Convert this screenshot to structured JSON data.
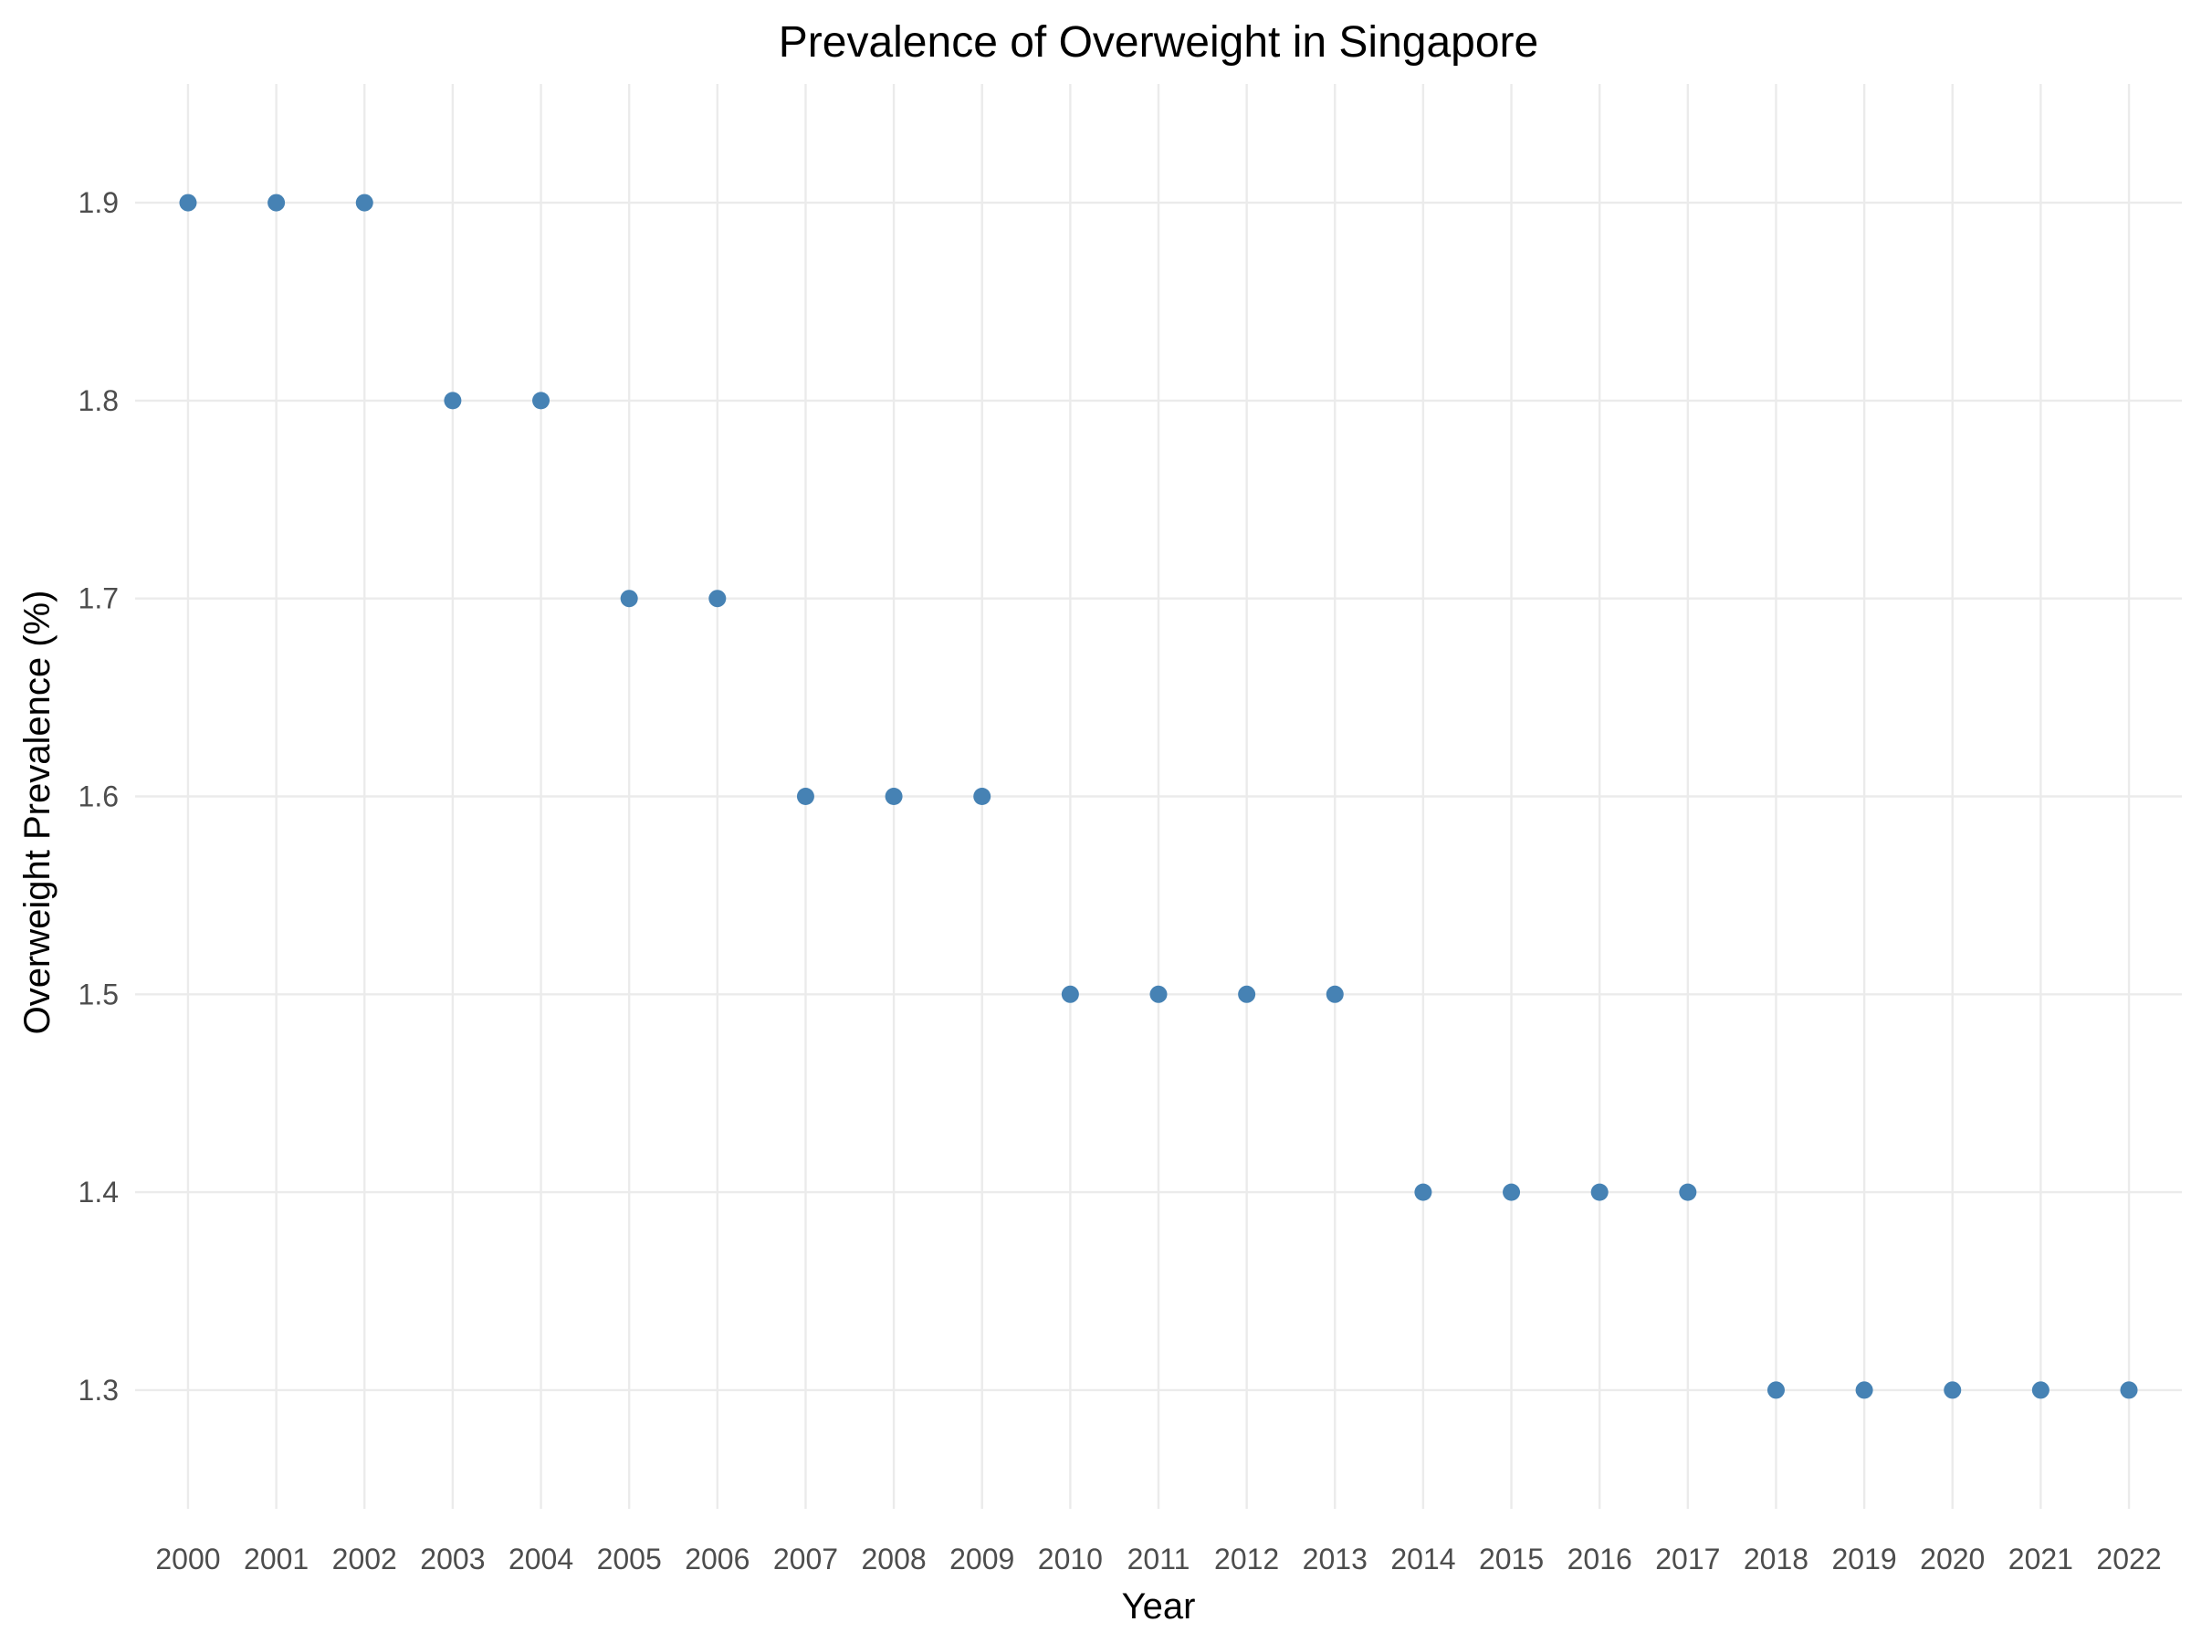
{
  "chart_data": {
    "type": "scatter",
    "title": "Prevalence of Overweight in Singapore",
    "xlabel": "Year",
    "ylabel": "Overweight Prevalence (%)",
    "x": [
      2000,
      2001,
      2002,
      2003,
      2004,
      2005,
      2006,
      2007,
      2008,
      2009,
      2010,
      2011,
      2012,
      2013,
      2014,
      2015,
      2016,
      2017,
      2018,
      2019,
      2020,
      2021,
      2022
    ],
    "y": [
      1.9,
      1.9,
      1.9,
      1.8,
      1.8,
      1.7,
      1.7,
      1.6,
      1.6,
      1.6,
      1.5,
      1.5,
      1.5,
      1.5,
      1.4,
      1.4,
      1.4,
      1.4,
      1.3,
      1.3,
      1.3,
      1.3,
      1.3
    ],
    "x_tick_labels": [
      "2000",
      "2001",
      "2002",
      "2003",
      "2004",
      "2005",
      "2006",
      "2007",
      "2008",
      "2009",
      "2010",
      "2011",
      "2012",
      "2013",
      "2014",
      "2015",
      "2016",
      "2017",
      "2018",
      "2019",
      "2020",
      "2021",
      "2022"
    ],
    "y_ticks": [
      1.3,
      1.4,
      1.5,
      1.6,
      1.7,
      1.8,
      1.9
    ],
    "y_tick_labels": [
      "1.3",
      "1.4",
      "1.5",
      "1.6",
      "1.7",
      "1.8",
      "1.9"
    ],
    "xlim": [
      1999.4,
      2022.6
    ],
    "ylim": [
      1.24,
      1.96
    ],
    "grid": true,
    "legend": "none",
    "point_color": "#4682b4"
  }
}
